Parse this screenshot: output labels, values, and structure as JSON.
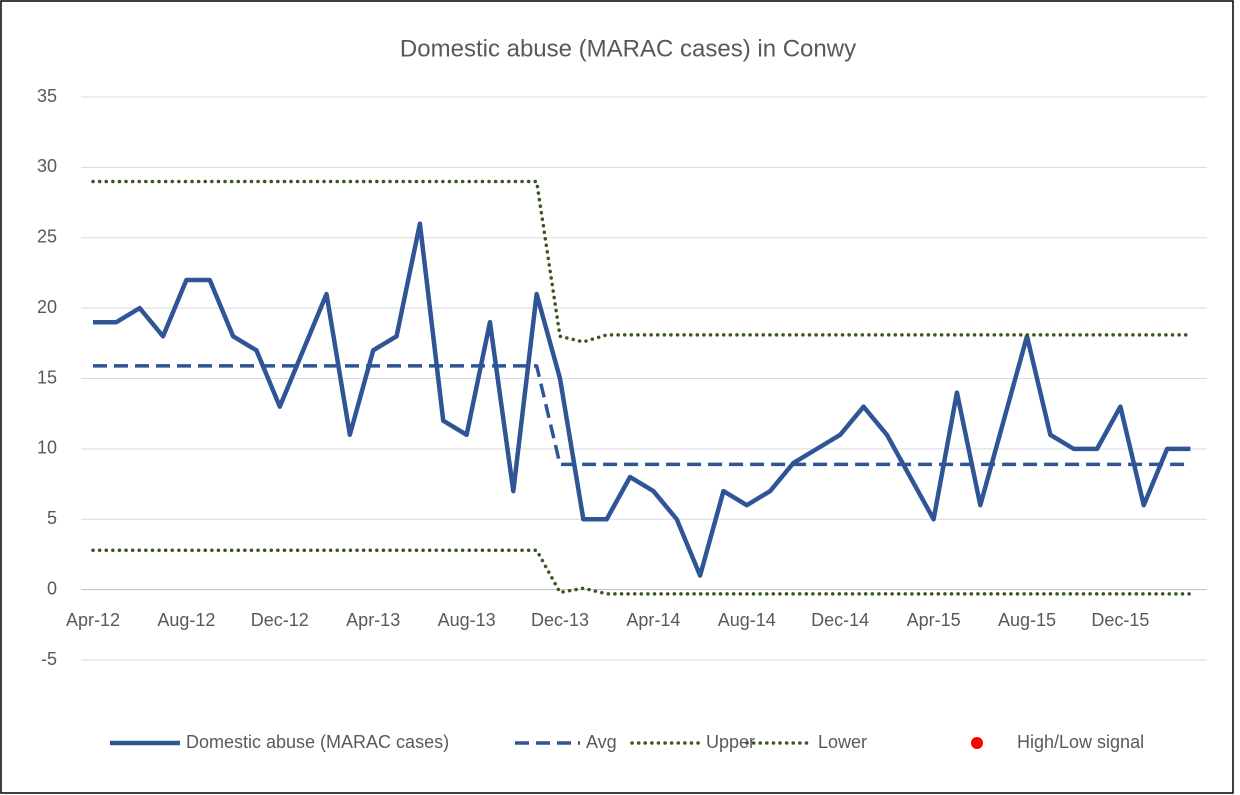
{
  "chart_data": {
    "type": "line",
    "title": "Domestic abuse (MARAC cases) in Conwy",
    "categories": [
      "Apr-12",
      null,
      null,
      null,
      "Aug-12",
      null,
      null,
      null,
      "Dec-12",
      null,
      null,
      null,
      "Apr-13",
      null,
      null,
      null,
      "Aug-13",
      null,
      null,
      null,
      "Dec-13",
      null,
      null,
      null,
      "Apr-14",
      null,
      null,
      null,
      "Aug-14",
      null,
      null,
      null,
      "Dec-14",
      null,
      null,
      null,
      "Apr-15",
      null,
      null,
      null,
      "Aug-15",
      null,
      null,
      null,
      "Dec-15",
      null,
      null,
      null
    ],
    "series": [
      {
        "name": "Domestic abuse (MARAC cases)",
        "color": "#2f5597",
        "style": "solid",
        "values": [
          19,
          19,
          20,
          18,
          22,
          22,
          18,
          17,
          13,
          17,
          21,
          11,
          17,
          18,
          26,
          12,
          11,
          19,
          7,
          21,
          15,
          5,
          5,
          8,
          7,
          5,
          1,
          7,
          6,
          7,
          9,
          10,
          11,
          13,
          11,
          8,
          5,
          14,
          6,
          12,
          18,
          11,
          10,
          10,
          13,
          6,
          10,
          10
        ]
      },
      {
        "name": "Avg",
        "color": "#2f5597",
        "style": "dashed",
        "values": [
          15.9,
          15.9,
          15.9,
          15.9,
          15.9,
          15.9,
          15.9,
          15.9,
          15.9,
          15.9,
          15.9,
          15.9,
          15.9,
          15.9,
          15.9,
          15.9,
          15.9,
          15.9,
          15.9,
          15.9,
          8.9,
          8.9,
          8.9,
          8.9,
          8.9,
          8.9,
          8.9,
          8.9,
          8.9,
          8.9,
          8.9,
          8.9,
          8.9,
          8.9,
          8.9,
          8.9,
          8.9,
          8.9,
          8.9,
          8.9,
          8.9,
          8.9,
          8.9,
          8.9,
          8.9,
          8.9,
          8.9,
          8.9
        ]
      },
      {
        "name": "Upper",
        "color": "#385723",
        "style": "dotted",
        "values": [
          29,
          29,
          29,
          29,
          29,
          29,
          29,
          29,
          29,
          29,
          29,
          29,
          29,
          29,
          29,
          29,
          29,
          29,
          29,
          29,
          18,
          17.6,
          18.1,
          18.1,
          18.1,
          18.1,
          18.1,
          18.1,
          18.1,
          18.1,
          18.1,
          18.1,
          18.1,
          18.1,
          18.1,
          18.1,
          18.1,
          18.1,
          18.1,
          18.1,
          18.1,
          18.1,
          18.1,
          18.1,
          18.1,
          18.1,
          18.1,
          18.1
        ]
      },
      {
        "name": "Lower",
        "color": "#385723",
        "style": "dotted",
        "values": [
          2.8,
          2.8,
          2.8,
          2.8,
          2.8,
          2.8,
          2.8,
          2.8,
          2.8,
          2.8,
          2.8,
          2.8,
          2.8,
          2.8,
          2.8,
          2.8,
          2.8,
          2.8,
          2.8,
          2.8,
          -0.2,
          0.1,
          -0.3,
          -0.3,
          -0.3,
          -0.3,
          -0.3,
          -0.3,
          -0.3,
          -0.3,
          -0.3,
          -0.3,
          -0.3,
          -0.3,
          -0.3,
          -0.3,
          -0.3,
          -0.3,
          -0.3,
          -0.3,
          -0.3,
          -0.3,
          -0.3,
          -0.3,
          -0.3,
          -0.3,
          -0.3,
          -0.3
        ]
      },
      {
        "name": "High/Low signal",
        "color": "#ff0000",
        "style": "marker",
        "values": [
          null,
          null,
          null,
          null,
          null,
          null,
          null,
          null,
          null,
          null,
          null,
          null,
          null,
          null,
          null,
          null,
          null,
          null,
          null,
          null,
          null,
          null,
          null,
          null,
          null,
          null,
          null,
          null,
          null,
          null,
          null,
          null,
          null,
          null,
          null,
          null,
          null,
          null,
          null,
          null,
          null,
          null,
          null,
          null,
          null,
          null,
          null,
          null
        ]
      }
    ],
    "ylim": [
      -5,
      35
    ],
    "yticks": [
      -5,
      0,
      5,
      10,
      15,
      20,
      25,
      30,
      35
    ],
    "grid": true,
    "legend": "bottom"
  }
}
